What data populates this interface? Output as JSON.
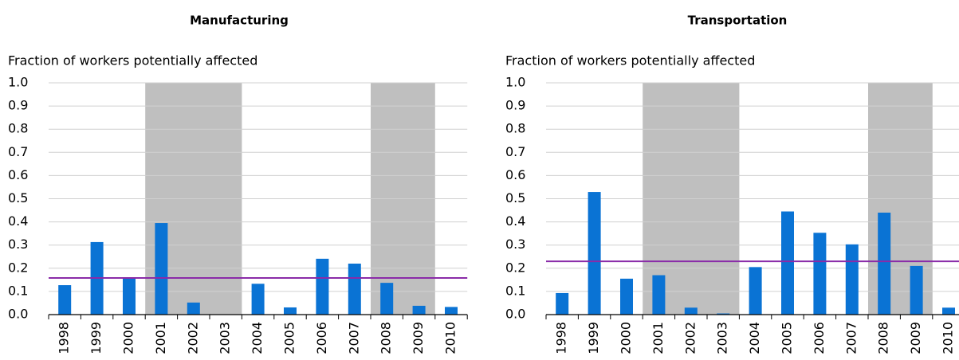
{
  "chart_data": [
    {
      "type": "bar",
      "title": "Manufacturing",
      "y_label": "Fraction of workers potentially affected",
      "categories": [
        "1998",
        "1999",
        "2000",
        "2001",
        "2002",
        "2003",
        "2004",
        "2005",
        "2006",
        "2007",
        "2008",
        "2009",
        "2010"
      ],
      "values": [
        0.127,
        0.313,
        0.158,
        0.395,
        0.052,
        0,
        0.133,
        0.031,
        0.241,
        0.22,
        0.137,
        0.038,
        0.033
      ],
      "color": "#0a73d4",
      "ylim": [
        0,
        1
      ],
      "yticks": [
        {
          "value": 0,
          "label": "0.0"
        },
        0.1,
        0.2,
        0.3,
        0.4,
        0.5,
        0.6,
        0.7,
        0.8,
        0.9,
        {
          "value": 1,
          "label": "1.0"
        }
      ],
      "grid": true,
      "shaded": [
        [
          "2001",
          "2003"
        ],
        [
          "2008",
          "2009"
        ]
      ],
      "shade_color": "#bfbfbf",
      "reference_line": 0.158,
      "reference_color": "#8a2ba8"
    },
    {
      "type": "bar",
      "title": "Transportation",
      "y_label": "Fraction of workers potentially affected",
      "categories": [
        "1998",
        "1999",
        "2000",
        "2001",
        "2002",
        "2003",
        "2004",
        "2005",
        "2006",
        "2007",
        "2008",
        "2009",
        "2010"
      ],
      "values": [
        0.093,
        0.529,
        0.155,
        0.17,
        0.03,
        0.005,
        0.205,
        0.445,
        0.353,
        0.303,
        0.44,
        0.21,
        0.03
      ],
      "color": "#0a73d4",
      "ylim": [
        0,
        1
      ],
      "yticks": [
        {
          "value": 0,
          "label": "0.0"
        },
        0.1,
        0.2,
        0.3,
        0.4,
        0.5,
        0.6,
        0.7,
        0.8,
        0.9,
        {
          "value": 1,
          "label": "1.0"
        }
      ],
      "grid": true,
      "shaded": [
        [
          "2001",
          "2003"
        ],
        [
          "2008",
          "2009"
        ]
      ],
      "shade_color": "#bfbfbf",
      "reference_line": 0.23,
      "reference_color": "#8a2ba8"
    }
  ]
}
